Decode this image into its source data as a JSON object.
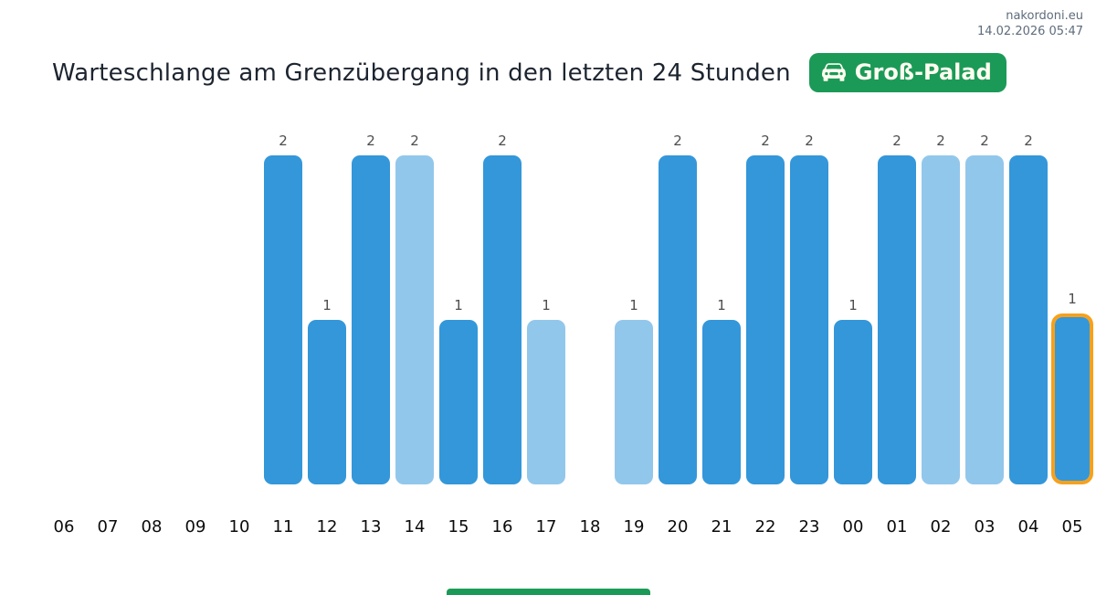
{
  "meta": {
    "site": "nakordoni.eu",
    "timestamp": "14.02.2026 05:47"
  },
  "header": {
    "title": "Warteschlange am Grenzübergang in den letzten 24 Stunden",
    "badge": {
      "label": "Groß-Palad",
      "icon": "car-front-icon",
      "bg": "#1b9a57",
      "text_color": "#fffdf0"
    }
  },
  "chart_data": {
    "type": "bar",
    "title": "Warteschlange am Grenzübergang in den letzten 24 Stunden",
    "xlabel": "",
    "ylabel": "",
    "categories": [
      "06",
      "07",
      "08",
      "09",
      "10",
      "11",
      "12",
      "13",
      "14",
      "15",
      "16",
      "17",
      "18",
      "19",
      "20",
      "21",
      "22",
      "23",
      "00",
      "01",
      "02",
      "03",
      "04",
      "05"
    ],
    "values": [
      0,
      0,
      0,
      0,
      0,
      2,
      1,
      2,
      2,
      1,
      2,
      1,
      0,
      1,
      2,
      1,
      2,
      2,
      1,
      2,
      2,
      2,
      2,
      1
    ],
    "bar_shades": [
      null,
      null,
      null,
      null,
      null,
      "dark",
      "dark",
      "dark",
      "light",
      "dark",
      "dark",
      "light",
      null,
      "light",
      "dark",
      "dark",
      "dark",
      "dark",
      "dark",
      "dark",
      "light",
      "light",
      "dark",
      "dark"
    ],
    "highlighted_index": 23,
    "data_labels_shown": true,
    "ylim": [
      0,
      2
    ],
    "grid": false,
    "legend": "none",
    "colors": {
      "bar_dark": "#3397da",
      "bar_light": "#92c7ec",
      "highlight_border": "#f7a11a",
      "value_label": "#4d4d4d",
      "tick_label": "#0b0b0b"
    }
  },
  "footer": {
    "accent_color": "#1b9a57"
  }
}
